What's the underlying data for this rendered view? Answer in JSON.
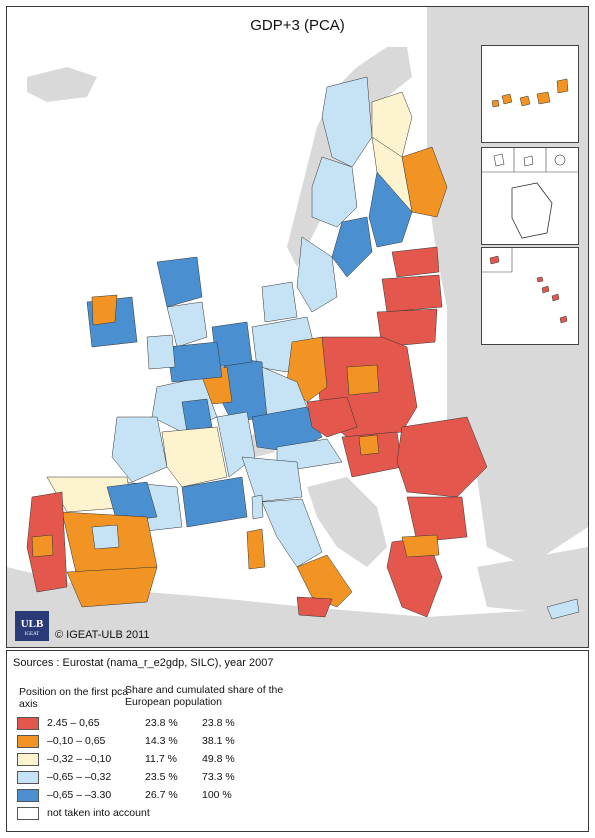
{
  "title": "GDP+3 (PCA)",
  "copyright": "© IGEAT-ULB 2011",
  "logo": {
    "text": "ULB",
    "subtext": "IGEAT"
  },
  "sources": "Sources : Eurostat (nama_r_e2gdp, SILC), year 2007",
  "legend": {
    "header_position": "Position on the first pca axis",
    "header_share": "Share and cumulated share of the European population",
    "classes": [
      {
        "range": "2.45 – 0,65",
        "share": "23.8 %",
        "cumulated": "23.8 %",
        "color": "#e3574d"
      },
      {
        "range": "–0,10 – 0,65",
        "share": "14.3 %",
        "cumulated": "38.1 %",
        "color": "#f29424"
      },
      {
        "range": "–0,32 – –0,10",
        "share": "11.7 %",
        "cumulated": "49.8 %",
        "color": "#fdf3cf"
      },
      {
        "range": "–0,65 – –0,32",
        "share": "23.5 %",
        "cumulated": "73.3 %",
        "color": "#c5e3f4"
      },
      {
        "range": "–0,65 – –3.30",
        "share": "26.7 %",
        "cumulated": "100 %",
        "color": "#4a90d0"
      },
      {
        "range": "not taken into account",
        "share": "",
        "cumulated": "",
        "color": "#ffffff"
      }
    ]
  },
  "colors": {
    "background": "#d9d9d9",
    "sea": "#ffffff",
    "non_eu_land": "#d9d9d9",
    "class1": "#e3574d",
    "class2": "#f29424",
    "class3": "#fdf3cf",
    "class4": "#c5e3f4",
    "class5": "#4a90d0",
    "no_data": "#ffffff"
  }
}
